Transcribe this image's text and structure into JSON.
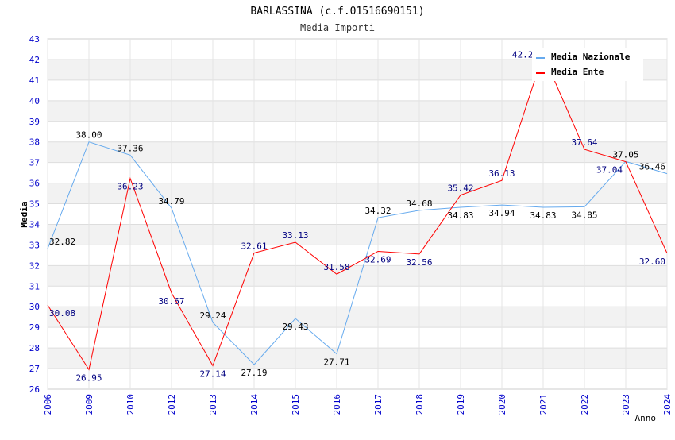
{
  "chart_data": {
    "type": "line",
    "title": "BARLASSINA (c.f.01516690151)",
    "subtitle": "Media Importi",
    "xlabel": "Anno",
    "ylabel": "Media",
    "ylim": [
      26,
      43
    ],
    "grid": true,
    "legend_position": "top-right",
    "x": [
      "2006",
      "2009",
      "2010",
      "2012",
      "2013",
      "2014",
      "2015",
      "2016",
      "2017",
      "2018",
      "2019",
      "2020",
      "2021",
      "2022",
      "2023",
      "2024"
    ],
    "series": [
      {
        "name": "Media Nazionale",
        "color": "#66aaee",
        "label_color": "#000000",
        "values": [
          32.82,
          38.0,
          37.36,
          34.79,
          29.24,
          27.19,
          29.43,
          27.71,
          34.32,
          34.68,
          34.83,
          34.94,
          34.83,
          34.85,
          37.05,
          36.46
        ]
      },
      {
        "name": "Media Ente",
        "color": "#ff0000",
        "label_color": "#000080",
        "values": [
          30.08,
          26.95,
          36.23,
          30.67,
          27.14,
          32.61,
          33.13,
          31.58,
          32.69,
          32.56,
          35.42,
          36.13,
          42.24,
          37.64,
          37.04,
          32.6
        ]
      }
    ]
  }
}
